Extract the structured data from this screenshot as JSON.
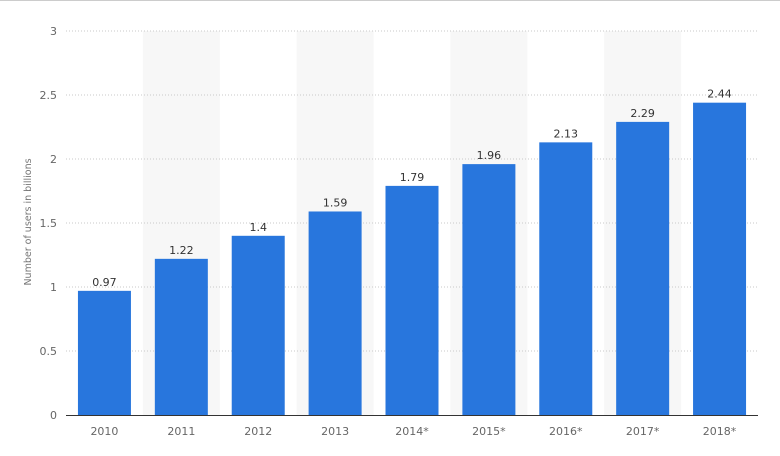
{
  "chart_data": {
    "type": "bar",
    "categories": [
      "2010",
      "2011",
      "2012",
      "2013",
      "2014*",
      "2015*",
      "2016*",
      "2017*",
      "2018*"
    ],
    "values": [
      0.97,
      1.22,
      1.4,
      1.59,
      1.79,
      1.96,
      2.13,
      2.29,
      2.44
    ],
    "value_labels": [
      "0.97",
      "1.22",
      "1.4",
      "1.59",
      "1.79",
      "1.96",
      "2.13",
      "2.29",
      "2.44"
    ],
    "title": "",
    "xlabel": "",
    "ylabel": "Number of users in billions",
    "ylim": [
      0,
      3
    ],
    "yticks": [
      0,
      0.5,
      1,
      1.5,
      2,
      2.5,
      3
    ],
    "ytick_labels": [
      "0",
      "0.5",
      "1",
      "1.5",
      "2",
      "2.5",
      "3"
    ],
    "grid": true,
    "legend": "none",
    "bar_color": "#2876dd",
    "alternate_band_color": "#f7f7f7"
  }
}
